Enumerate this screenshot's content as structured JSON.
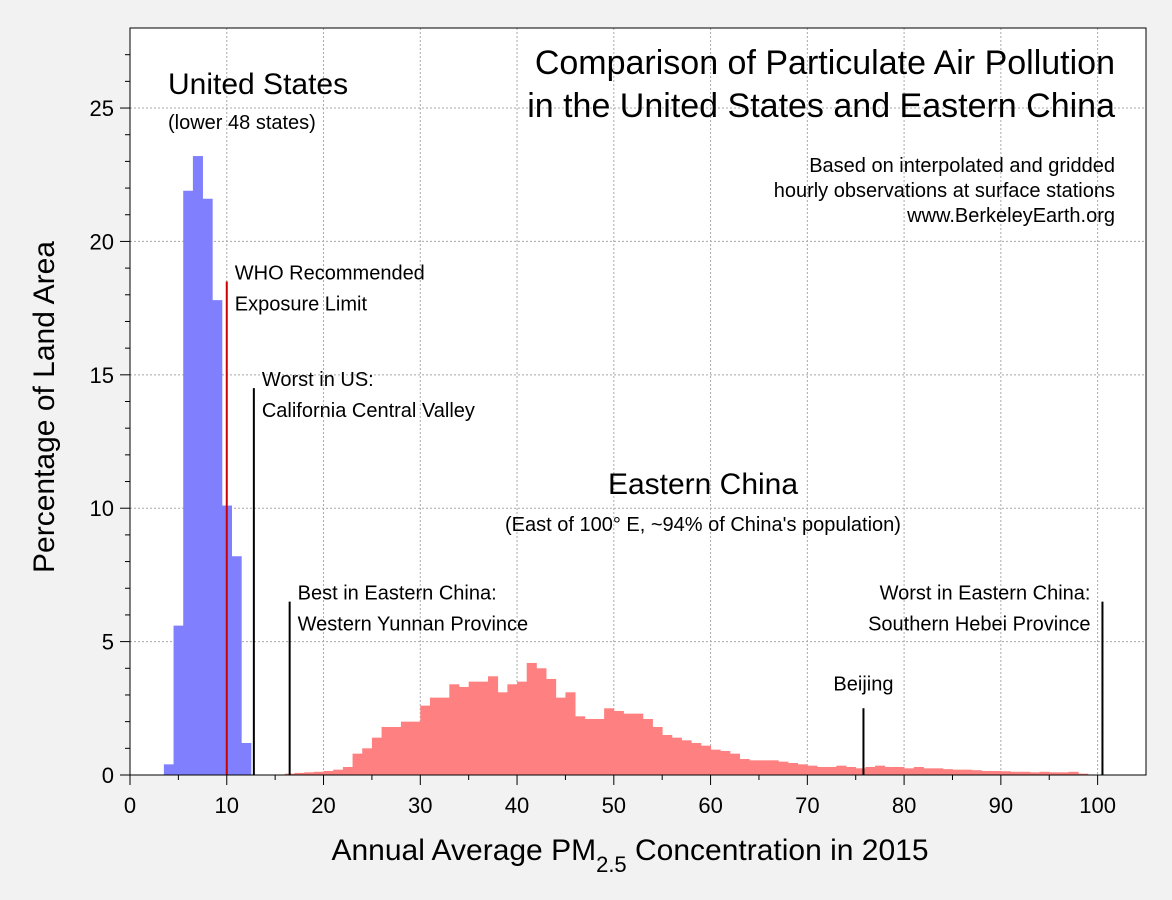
{
  "chart_data": {
    "type": "bar",
    "title_lines": [
      "Comparison of Particulate Air Pollution",
      "in the United States and Eastern China"
    ],
    "source_lines": [
      "Based on interpolated and gridded",
      "hourly observations at surface stations",
      "www.BerkeleyEarth.org"
    ],
    "xlabel": {
      "main": "Annual Average PM",
      "sub": "2.5",
      "rest": " Concentration in 2015"
    },
    "ylabel": "Percentage of Land Area",
    "xlim": [
      0,
      105
    ],
    "ylim": [
      0,
      28
    ],
    "xticks": [
      0,
      10,
      20,
      30,
      40,
      50,
      60,
      70,
      80,
      90,
      100
    ],
    "yticks": [
      0,
      5,
      10,
      15,
      20,
      25
    ],
    "grid": true,
    "bin_width": 1,
    "series": [
      {
        "name": "United States",
        "subtitle": "(lower 48 states)",
        "color": "#8080ff",
        "bin_starts": [
          3.5,
          4.5,
          5.5,
          6.5,
          7.5,
          8.5,
          9.5,
          10.5,
          11.5
        ],
        "values": [
          0.4,
          5.6,
          21.9,
          23.2,
          21.6,
          17.8,
          10.1,
          8.2,
          1.2
        ]
      },
      {
        "name": "Eastern China",
        "subtitle": "(East of 100° E, ~94% of China's population)",
        "color": "#ff8080",
        "bin_starts": [
          16,
          17,
          18,
          19,
          20,
          21,
          22,
          23,
          24,
          25,
          26,
          27,
          28,
          29,
          30,
          31,
          32,
          33,
          34,
          35,
          36,
          37,
          38,
          39,
          40,
          41,
          42,
          43,
          44,
          45,
          46,
          47,
          48,
          49,
          50,
          51,
          52,
          53,
          54,
          55,
          56,
          57,
          58,
          59,
          60,
          61,
          62,
          63,
          64,
          65,
          66,
          67,
          68,
          69,
          70,
          71,
          72,
          73,
          74,
          75,
          76,
          77,
          78,
          79,
          80,
          81,
          82,
          83,
          84,
          85,
          86,
          87,
          88,
          89,
          90,
          91,
          92,
          93,
          94,
          95,
          96,
          97,
          98
        ],
        "values": [
          0.05,
          0.08,
          0.1,
          0.12,
          0.15,
          0.2,
          0.3,
          0.8,
          1.0,
          1.4,
          1.8,
          1.8,
          2.0,
          2.0,
          2.6,
          2.9,
          2.9,
          3.4,
          3.3,
          3.5,
          3.5,
          3.7,
          3.1,
          3.4,
          3.5,
          4.2,
          4.0,
          3.6,
          2.9,
          3.1,
          2.2,
          2.1,
          2.1,
          2.5,
          2.4,
          2.3,
          2.3,
          2.1,
          1.8,
          1.5,
          1.4,
          1.3,
          1.2,
          1.1,
          0.95,
          0.9,
          0.8,
          0.6,
          0.55,
          0.55,
          0.55,
          0.5,
          0.45,
          0.4,
          0.35,
          0.3,
          0.3,
          0.35,
          0.3,
          0.25,
          0.3,
          0.35,
          0.3,
          0.3,
          0.25,
          0.3,
          0.25,
          0.25,
          0.22,
          0.2,
          0.2,
          0.18,
          0.15,
          0.15,
          0.14,
          0.12,
          0.12,
          0.1,
          0.12,
          0.1,
          0.1,
          0.12,
          0.05
        ]
      }
    ],
    "annotations": [
      {
        "id": "who",
        "lines": [
          "WHO Recommended",
          "Exposure Limit"
        ],
        "x": 10,
        "y_top": 18.5,
        "color": "#cc0000"
      },
      {
        "id": "worst-us",
        "lines": [
          "Worst in US:",
          "California Central Valley"
        ],
        "x": 12.8,
        "y_top": 14.5,
        "color": "#000000"
      },
      {
        "id": "best-china",
        "lines": [
          "Best in Eastern China:",
          "Western Yunnan Province"
        ],
        "x": 16.5,
        "y_top": 6.5,
        "color": "#000000"
      },
      {
        "id": "beijing",
        "lines": [
          "Beijing"
        ],
        "x": 75.8,
        "y_top": 2.5,
        "color": "#000000"
      },
      {
        "id": "worst-china",
        "lines": [
          "Worst in Eastern China:",
          "Southern Hebei Province"
        ],
        "x": 100.5,
        "y_top": 6.5,
        "color": "#000000"
      }
    ]
  }
}
